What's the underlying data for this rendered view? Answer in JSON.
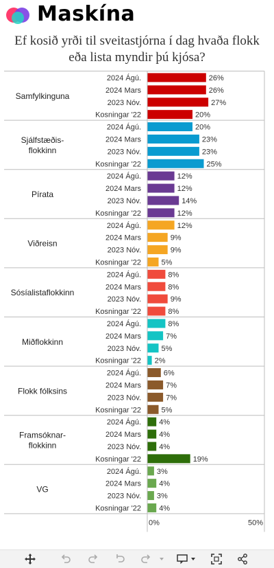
{
  "brand": {
    "name": "Maskína"
  },
  "title": "Ef kosið yrði til sveitastjórna í dag hvaða flokk eða lista myndir þú kjósa?",
  "chart_data": {
    "type": "bar",
    "orientation": "horizontal",
    "value_suffix": "%",
    "xlim": [
      0,
      50
    ],
    "x_ticks": [
      "0%",
      "50%"
    ],
    "grid": false,
    "colors_note": "each party has its own bar color",
    "groups": [
      {
        "name": "Samfylkinguna",
        "lines": [
          "Samfylkinguna"
        ],
        "color": "#cc0000",
        "rows": [
          {
            "label": "2024 Ágú.",
            "value": 26
          },
          {
            "label": "2024 Mars",
            "value": 26
          },
          {
            "label": "2023 Nóv.",
            "value": 27
          },
          {
            "label": "Kosningar '22",
            "value": 20
          }
        ]
      },
      {
        "name": "Sjálfstæðis-flokkinn",
        "lines": [
          "Sjálfstæðis-",
          "flokkinn"
        ],
        "color": "#0a9bd0",
        "rows": [
          {
            "label": "2024 Ágú.",
            "value": 20
          },
          {
            "label": "2024 Mars",
            "value": 23
          },
          {
            "label": "2023 Nóv.",
            "value": 23
          },
          {
            "label": "Kosningar '22",
            "value": 25
          }
        ]
      },
      {
        "name": "Pírata",
        "lines": [
          "Pírata"
        ],
        "color": "#6a3a93",
        "rows": [
          {
            "label": "2024 Ágú.",
            "value": 12
          },
          {
            "label": "2024 Mars",
            "value": 12
          },
          {
            "label": "2023 Nóv.",
            "value": 14
          },
          {
            "label": "Kosningar '22",
            "value": 12
          }
        ]
      },
      {
        "name": "Viðreisn",
        "lines": [
          "Viðreisn"
        ],
        "color": "#f5a623",
        "rows": [
          {
            "label": "2024 Ágú.",
            "value": 12
          },
          {
            "label": "2024 Mars",
            "value": 9
          },
          {
            "label": "2023 Nóv.",
            "value": 9
          },
          {
            "label": "Kosningar '22",
            "value": 5
          }
        ]
      },
      {
        "name": "Sósíalistaflokkinn",
        "lines": [
          "Sósíalistaflokkinn"
        ],
        "color": "#f04b3c",
        "rows": [
          {
            "label": "2024 Ágú.",
            "value": 8
          },
          {
            "label": "2024 Mars",
            "value": 8
          },
          {
            "label": "2023 Nóv.",
            "value": 9
          },
          {
            "label": "Kosningar '22",
            "value": 8
          }
        ]
      },
      {
        "name": "Miðflokkinn",
        "lines": [
          "Miðflokkinn"
        ],
        "color": "#14c4c4",
        "rows": [
          {
            "label": "2024 Ágú.",
            "value": 8
          },
          {
            "label": "2024 Mars",
            "value": 7
          },
          {
            "label": "2023 Nóv.",
            "value": 5
          },
          {
            "label": "Kosningar '22",
            "value": 2
          }
        ]
      },
      {
        "name": "Flokk fólksins",
        "lines": [
          "Flokk fólksins"
        ],
        "color": "#8b5a2b",
        "rows": [
          {
            "label": "2024 Ágú.",
            "value": 6
          },
          {
            "label": "2024 Mars",
            "value": 7
          },
          {
            "label": "2023 Nóv.",
            "value": 7
          },
          {
            "label": "Kosningar '22",
            "value": 5
          }
        ]
      },
      {
        "name": "Framsóknar-flokkinn",
        "lines": [
          "Framsóknar-",
          "flokkinn"
        ],
        "color": "#2e6e0a",
        "rows": [
          {
            "label": "2024 Ágú.",
            "value": 4
          },
          {
            "label": "2024 Mars",
            "value": 4
          },
          {
            "label": "2023 Nóv.",
            "value": 4
          },
          {
            "label": "Kosningar '22",
            "value": 19
          }
        ]
      },
      {
        "name": "VG",
        "lines": [
          "VG"
        ],
        "color": "#6aa84f",
        "rows": [
          {
            "label": "2024 Ágú.",
            "value": 3
          },
          {
            "label": "2024 Mars",
            "value": 4
          },
          {
            "label": "2023 Nóv.",
            "value": 3
          },
          {
            "label": "Kosningar '22",
            "value": 4
          }
        ]
      }
    ]
  },
  "toolbar": {
    "icons": [
      "move-icon",
      "undo-icon",
      "redo-icon",
      "reset-icon",
      "forward-icon",
      "chevron-down-icon",
      "comment-icon",
      "chevron-down-icon",
      "fullscreen-icon",
      "share-icon"
    ]
  }
}
